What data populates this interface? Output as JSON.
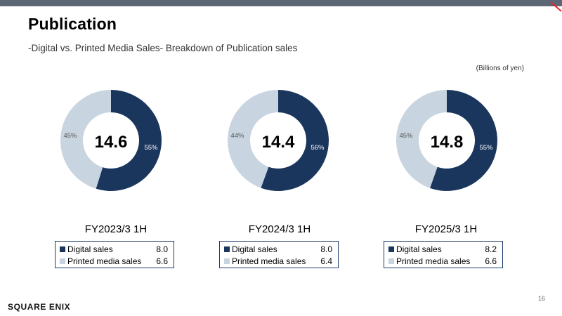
{
  "header": {
    "title": "Publication",
    "subtitle": "-Digital vs. Printed Media Sales- Breakdown of Publication sales",
    "units": "(Billions of yen)"
  },
  "colors": {
    "digital": "#1b365d",
    "printed": "#c8d5e0",
    "bar": "#5d6675",
    "accent": "#e8222c"
  },
  "footer": {
    "page_number": "16",
    "logo_text": "SQUARE ENIX"
  },
  "chart_data": [
    {
      "type": "pie",
      "title": "FY2023/3 1H",
      "center_total": "14.6",
      "categories": [
        "Digital sales",
        "Printed media sales"
      ],
      "values": [
        8.0,
        6.6
      ],
      "value_labels": [
        "8.0",
        "6.6"
      ],
      "percent_labels": [
        "55%",
        "45%"
      ]
    },
    {
      "type": "pie",
      "title": "FY2024/3 1H",
      "center_total": "14.4",
      "categories": [
        "Digital sales",
        "Printed media sales"
      ],
      "values": [
        8.0,
        6.4
      ],
      "value_labels": [
        "8.0",
        "6.4"
      ],
      "percent_labels": [
        "56%",
        "44%"
      ]
    },
    {
      "type": "pie",
      "title": "FY2025/3 1H",
      "center_total": "14.8",
      "categories": [
        "Digital sales",
        "Printed media sales"
      ],
      "values": [
        8.2,
        6.6
      ],
      "value_labels": [
        "8.2",
        "6.6"
      ],
      "percent_labels": [
        "55%",
        "45%"
      ]
    }
  ]
}
